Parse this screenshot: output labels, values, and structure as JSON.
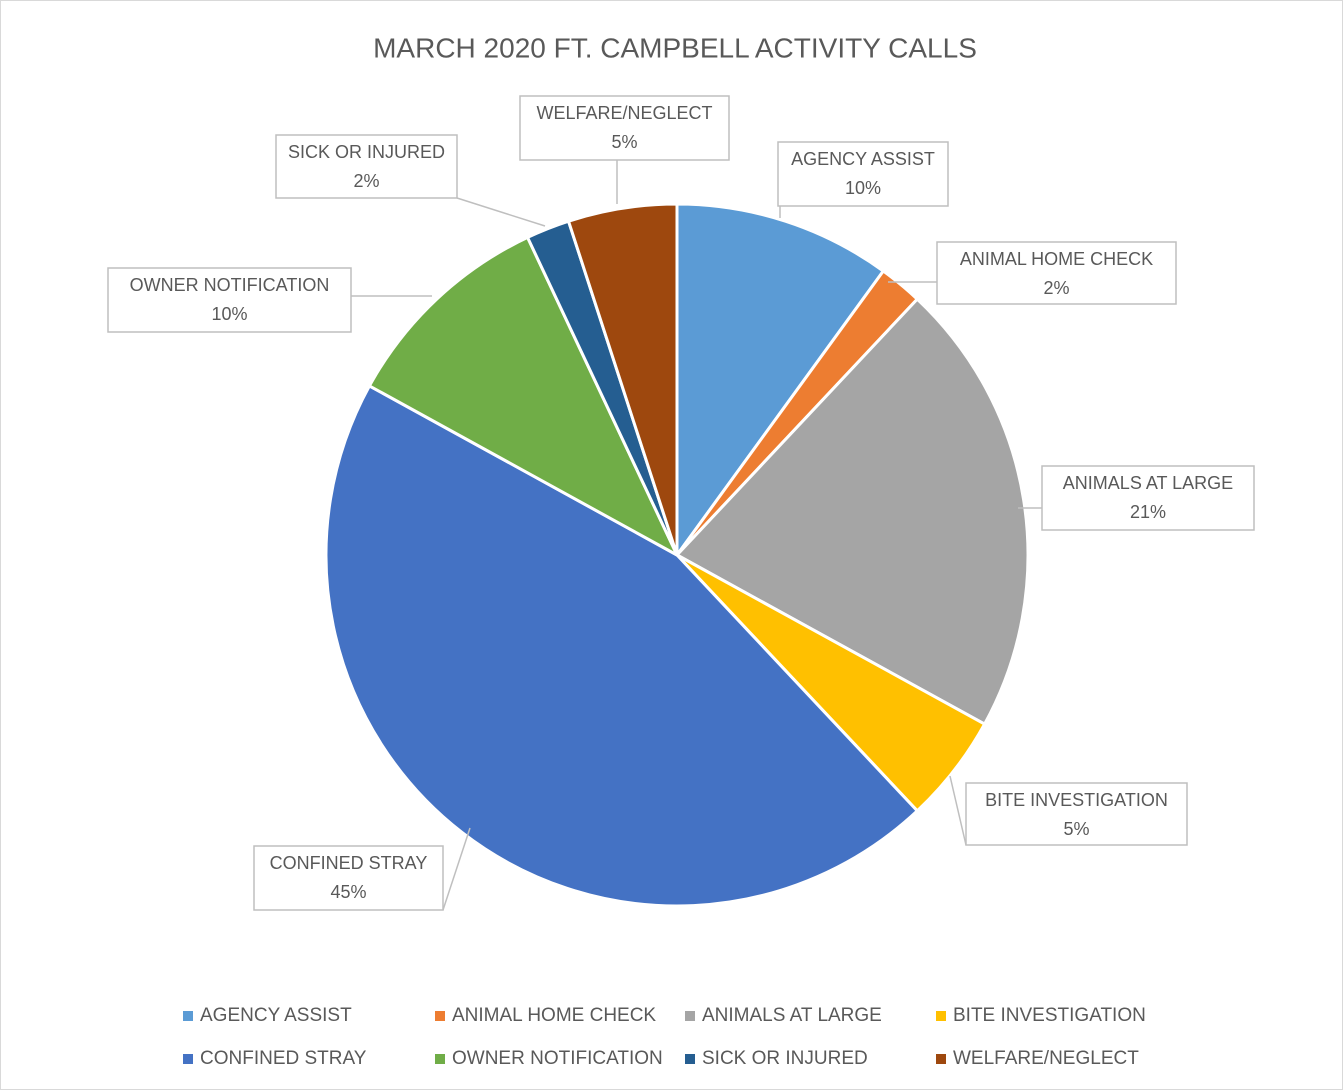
{
  "chart_data": {
    "type": "pie",
    "title": "MARCH 2020 FT. CAMPBELL ACTIVITY CALLS",
    "categories": [
      "AGENCY ASSIST",
      "ANIMAL HOME CHECK",
      "ANIMALS AT LARGE",
      "BITE INVESTIGATION",
      "CONFINED STRAY",
      "OWNER NOTIFICATION",
      "SICK OR INJURED",
      "WELFARE/NEGLECT"
    ],
    "values": [
      10,
      2,
      21,
      5,
      45,
      10,
      2,
      5
    ],
    "value_labels": [
      "10%",
      "2%",
      "21%",
      "5%",
      "45%",
      "10%",
      "2%",
      "5%"
    ],
    "colors": [
      "#5b9bd5",
      "#ed7d31",
      "#a5a5a5",
      "#ffc000",
      "#4472c4",
      "#70ad47",
      "#255e91",
      "#9e480e"
    ],
    "legend": "bottom"
  }
}
